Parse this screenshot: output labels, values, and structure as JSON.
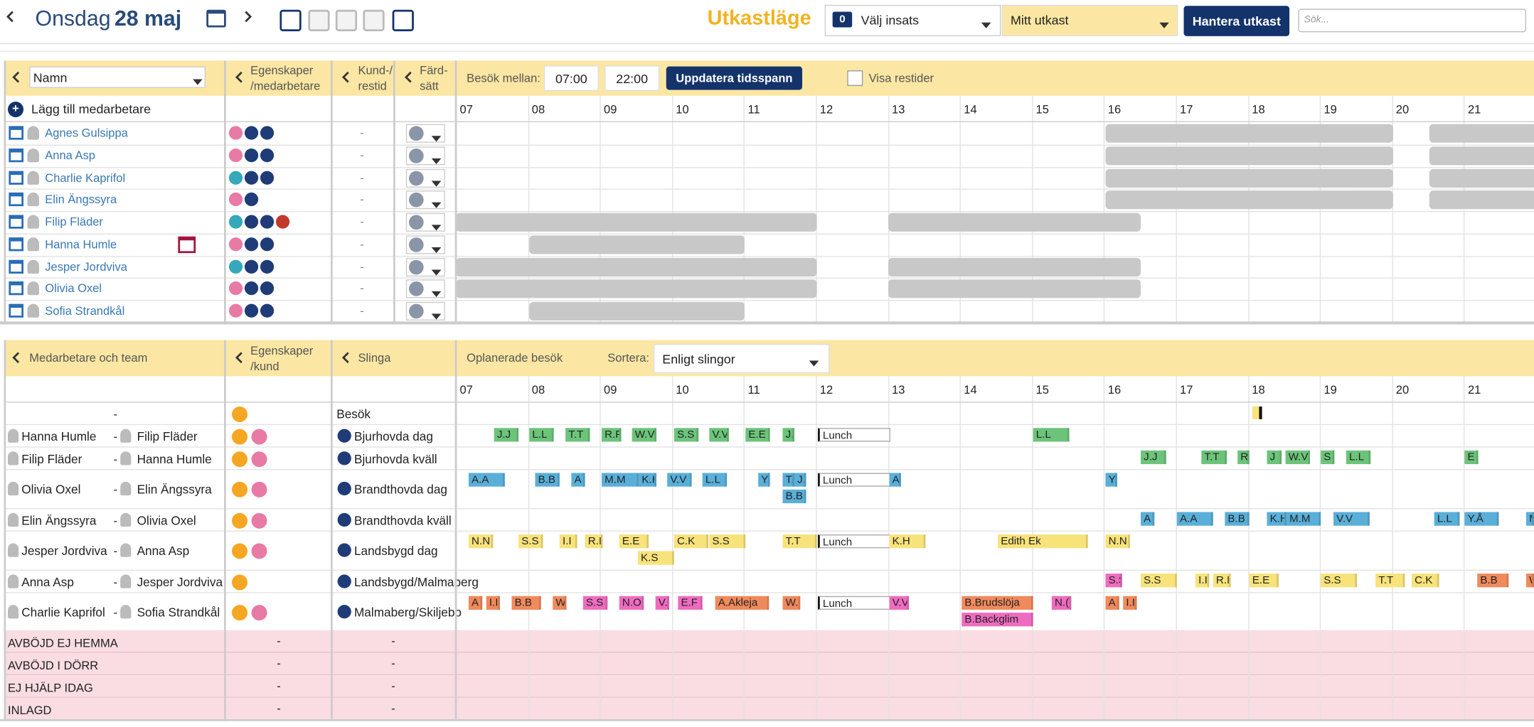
{
  "header": {
    "weekday": "Onsdag",
    "date": "28 maj",
    "mode": "Utkastläge",
    "insats_count": "0",
    "insats_select": "Välj insats",
    "draft_select": "Mitt utkast",
    "manage_button": "Hantera utkast",
    "search_placeholder": "Sök..."
  },
  "staff_panel": {
    "name_select": "Namn",
    "col_properties": "Egenskaper /medarbetare",
    "col_travel": "Kund-/ restid",
    "col_mode": "Färd- sätt",
    "time_label": "Besök mellan:",
    "time_from": "07:00",
    "time_to": "22:00",
    "update_button": "Uppdatera tidsspann",
    "show_travel": "Visa restider",
    "add_staff": "Lägg till medarbetare",
    "hours": [
      "07",
      "08",
      "09",
      "10",
      "11",
      "12",
      "13",
      "14",
      "15",
      "16",
      "17",
      "18",
      "19",
      "20",
      "21"
    ],
    "staff": [
      {
        "name": "Agnes Gulsippa",
        "travel": "-"
      },
      {
        "name": "Anna Asp",
        "travel": "-"
      },
      {
        "name": "Charlie Kaprifol",
        "travel": "-"
      },
      {
        "name": "Elin Ängssyra",
        "travel": "-"
      },
      {
        "name": "Filip Fläder",
        "travel": "-"
      },
      {
        "name": "Hanna Humle",
        "travel": "-"
      },
      {
        "name": "Jesper Jordviva",
        "travel": "-"
      },
      {
        "name": "Olivia Oxel",
        "travel": "-"
      },
      {
        "name": "Sofia Strandkål",
        "travel": "-"
      }
    ]
  },
  "route_panel": {
    "col_team": "Medarbetare och team",
    "col_properties": "Egenskaper /kund",
    "col_route": "Slinga",
    "unplanned": "Oplanerade besök",
    "sort_label": "Sortera:",
    "sort_select": "Enligt slingor",
    "hours": [
      "07",
      "08",
      "09",
      "10",
      "11",
      "12",
      "13",
      "14",
      "15",
      "16",
      "17",
      "18",
      "19",
      "20",
      "21"
    ],
    "pair_separator": "-",
    "routes": [
      {
        "staff": "",
        "partner": "",
        "route": "Besök",
        "blocks": []
      },
      {
        "staff": "Hanna Humle",
        "partner": "Filip Fläder",
        "route": "Bjurhovda dag",
        "blocks": [
          "J.J",
          "L.L",
          "T.T",
          "R.F",
          "W.V",
          "S.S",
          "V.V",
          "E.E",
          "J.",
          "Lunch",
          "L.L"
        ]
      },
      {
        "staff": "Filip Fläder",
        "partner": "Hanna Humle",
        "route": "Bjurhovda kväll",
        "blocks": [
          "J.J",
          "T.T",
          "R",
          "J",
          "W.V",
          "S",
          "L.L",
          "E"
        ]
      },
      {
        "staff": "Olivia Oxel",
        "partner": "Elin Ängssyra",
        "route": "Brandthovda dag",
        "blocks": [
          "A.A",
          "B.B",
          "A",
          "M.M",
          "K.H",
          "V.V",
          "L.L",
          "Y.",
          "T.",
          "J.",
          "Lunch",
          "A",
          "Y.",
          "B.B"
        ]
      },
      {
        "staff": "Elin Ängssyra",
        "partner": "Olivia Oxel",
        "route": "Brandthovda kväll",
        "blocks": [
          "A",
          "A.A",
          "B.B",
          "K.H",
          "M.M",
          "V.V",
          "L.L",
          "Y.Å",
          "M"
        ]
      },
      {
        "staff": "Jesper Jordviva",
        "partner": "Anna Asp",
        "route": "Landsbygd dag",
        "blocks": [
          "N.N",
          "S.S",
          "I.I",
          "R.I",
          "E.E",
          "C.K",
          "S.S",
          "T.T",
          "Lunch",
          "K.H",
          "Edith Ek",
          "N.N",
          "K.S"
        ]
      },
      {
        "staff": "Anna Asp",
        "partner": "Jesper Jordviva",
        "route": "Landsbygd/Malmaberg",
        "blocks": [
          "S.S",
          "S.S",
          "I.I",
          "R.I",
          "E.E",
          "S.S",
          "T.T",
          "C.K",
          "B.B",
          "W"
        ]
      },
      {
        "staff": "Charlie Kaprifol",
        "partner": "Sofia Strandkål",
        "route": "Malmaberg/Skiljebo",
        "blocks": [
          "A",
          "I.I",
          "B.B",
          "W",
          "S.S",
          "N.O",
          "V.",
          "E.F",
          "A.Akleja",
          "W.",
          "Lunch",
          "V.V",
          "B.Brudslöja",
          "N.(",
          "A",
          "I.I",
          "B.Backglim"
        ]
      }
    ],
    "status_rows": [
      {
        "label": "AVBÖJD EJ HEMMA",
        "properties": "-",
        "route": "-"
      },
      {
        "label": "AVBÖJD I DÖRR",
        "properties": "-",
        "route": "-"
      },
      {
        "label": "EJ HJÄLP IDAG",
        "properties": "-",
        "route": "-"
      },
      {
        "label": "INLAGD",
        "properties": "-",
        "route": "-"
      }
    ]
  }
}
